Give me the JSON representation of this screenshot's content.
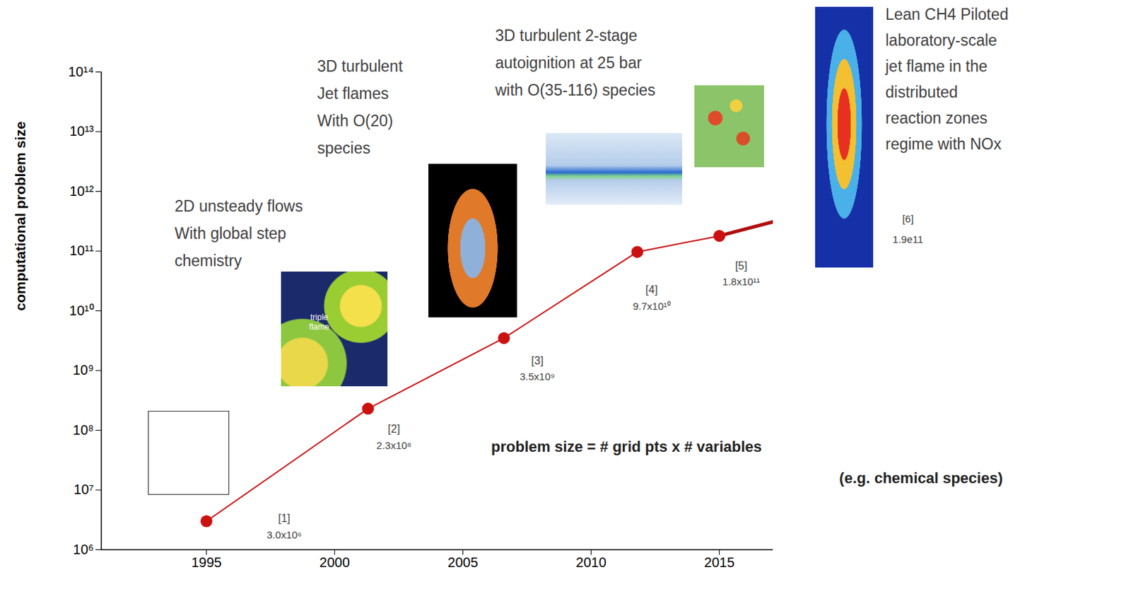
{
  "chart_data": {
    "type": "line",
    "y_label": "computational problem size",
    "x": [
      1995,
      2001.3,
      2006.6,
      2011.8,
      2015
    ],
    "values": [
      3000000.0,
      230000000.0,
      3500000000.0,
      97000000000.0,
      180000000000.0
    ],
    "color": "#cc1111",
    "marker": "circle",
    "data_labels": true,
    "value_labels": [
      "3.0x10⁶",
      "2.3x10⁸",
      "3.5x10⁹",
      "9.7x10¹⁰",
      "1.8x10¹¹"
    ],
    "point_refs": [
      "[1]",
      "[2]",
      "[3]",
      "[4]",
      "[5]"
    ],
    "extension": {
      "x": [
        2015,
        2017.1
      ],
      "values": [
        180000000000.0,
        310000000000.0
      ],
      "color": "#b00d0d"
    },
    "log": "y",
    "grid": false,
    "xlim": [
      1990.9,
      2017.1
    ],
    "xticks": [
      1995,
      2000,
      2005,
      2010,
      2015
    ],
    "ylim": [
      1000000.0,
      100000000000000.0
    ],
    "yticks": [
      {
        "value": 1000000.0,
        "label": "10⁶"
      },
      {
        "value": 10000000.0,
        "label": "10⁷"
      },
      {
        "value": 100000000.0,
        "label": "10⁸"
      },
      {
        "value": 1000000000.0,
        "label": "10⁹"
      },
      {
        "value": 10000000000.0,
        "label": "10¹⁰"
      },
      {
        "value": 100000000000.0,
        "label": "10¹¹"
      },
      {
        "value": 1000000000000.0,
        "label": "10¹²"
      },
      {
        "value": 10000000000000.0,
        "label": "10¹³"
      },
      {
        "value": 100000000000000.0,
        "label": "10¹⁴"
      }
    ],
    "annotations": [
      [
        "2D unsteady flows",
        "With global step",
        "chemistry"
      ],
      [
        "3D turbulent",
        "Jet flames",
        "With O(20)",
        "species"
      ],
      [
        "3D turbulent 2-stage",
        "autoignition at 25 bar",
        "with O(35-116) species"
      ],
      [
        "Lean CH4 Piloted",
        "laboratory-scale",
        "jet flame in the",
        "distributed",
        "reaction zones",
        "regime with NOx"
      ],
      [
        "[6]",
        "1.9e11"
      ],
      [
        "problem size = # grid pts x # variables",
        "(e.g. chemical species)"
      ]
    ],
    "inset_label": "triple flame"
  }
}
